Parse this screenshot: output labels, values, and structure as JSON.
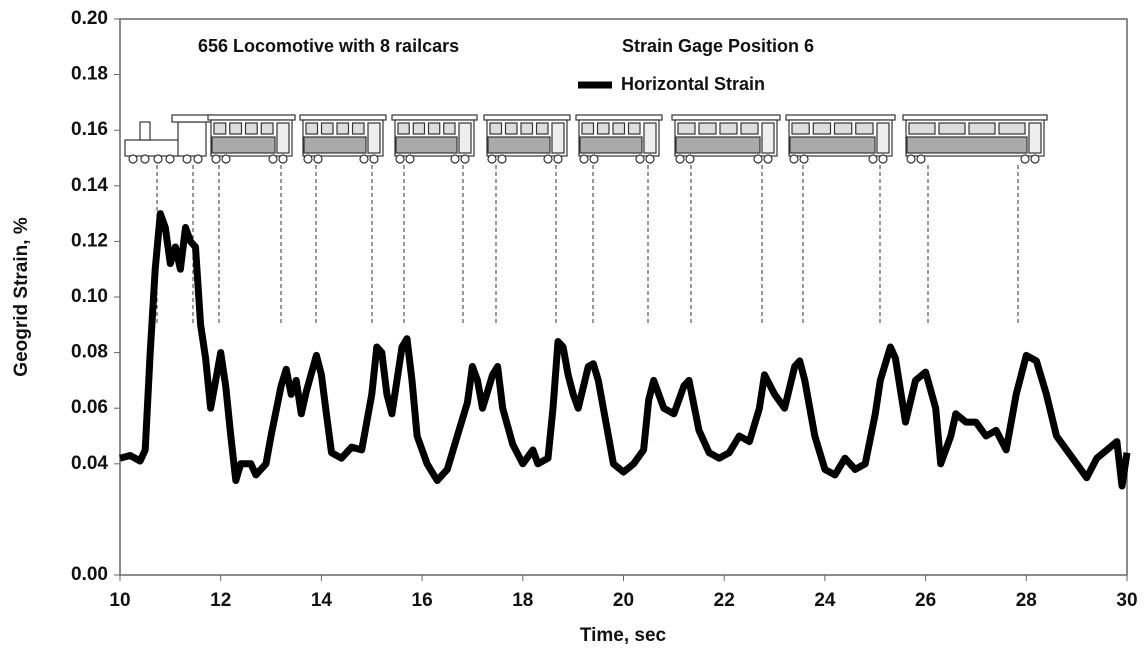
{
  "chart_data": {
    "type": "line",
    "annotations": [
      "656 Locomotive with 8 railcars",
      "Strain Gage Position 6"
    ],
    "x_label": "Time, sec",
    "y_label": "Geogrid Strain, %",
    "xlim": [
      10,
      30
    ],
    "xticks": [
      10,
      12,
      14,
      16,
      18,
      20,
      22,
      24,
      26,
      28,
      30
    ],
    "ylim": [
      0,
      0.2
    ],
    "yticks": [
      {
        "value": 0,
        "label": "0.00"
      },
      {
        "value": 0.04,
        "label": "0.04"
      },
      {
        "value": 0.06,
        "label": "0.06"
      },
      {
        "value": 0.08,
        "label": "0.08"
      },
      {
        "value": 0.1,
        "label": "0.10"
      },
      {
        "value": 0.12,
        "label": "0.12"
      },
      {
        "value": 0.14,
        "label": "0.14"
      },
      {
        "value": 0.16,
        "label": "0.16"
      },
      {
        "value": 0.18,
        "label": "0.18"
      },
      {
        "value": 0.2,
        "label": "0.20"
      }
    ],
    "legend": "top",
    "x": [
      10.0,
      10.2,
      10.4,
      10.5,
      10.6,
      10.7,
      10.8,
      10.9,
      11.0,
      11.1,
      11.2,
      11.3,
      11.4,
      11.5,
      11.6,
      11.7,
      11.8,
      11.9,
      12.0,
      12.1,
      12.2,
      12.3,
      12.4,
      12.6,
      12.7,
      12.9,
      13.0,
      13.2,
      13.3,
      13.4,
      13.5,
      13.6,
      13.7,
      13.9,
      14.0,
      14.1,
      14.2,
      14.4,
      14.6,
      14.8,
      15.0,
      15.1,
      15.2,
      15.3,
      15.4,
      15.6,
      15.7,
      15.8,
      15.9,
      16.1,
      16.3,
      16.5,
      16.7,
      16.9,
      17.0,
      17.1,
      17.2,
      17.4,
      17.5,
      17.6,
      17.8,
      18.0,
      18.2,
      18.3,
      18.5,
      18.6,
      18.7,
      18.8,
      18.9,
      19.0,
      19.1,
      19.3,
      19.4,
      19.5,
      19.7,
      19.8,
      20.0,
      20.2,
      20.4,
      20.5,
      20.6,
      20.8,
      21.0,
      21.2,
      21.3,
      21.5,
      21.7,
      21.9,
      22.1,
      22.3,
      22.5,
      22.7,
      22.8,
      23.0,
      23.2,
      23.4,
      23.5,
      23.6,
      23.8,
      24.0,
      24.2,
      24.4,
      24.6,
      24.8,
      25.0,
      25.1,
      25.3,
      25.4,
      25.6,
      25.8,
      26.0,
      26.2,
      26.3,
      26.5,
      26.6,
      26.8,
      27.0,
      27.2,
      27.4,
      27.6,
      27.8,
      28.0,
      28.2,
      28.4,
      28.6,
      28.8,
      29.0,
      29.2,
      29.4,
      29.6,
      29.8,
      29.9,
      30.0
    ],
    "series": [
      {
        "name": "Horizontal Strain",
        "color": "#000000",
        "values": [
          0.042,
          0.043,
          0.041,
          0.045,
          0.08,
          0.11,
          0.13,
          0.125,
          0.112,
          0.118,
          0.11,
          0.125,
          0.12,
          0.118,
          0.09,
          0.078,
          0.06,
          0.07,
          0.08,
          0.068,
          0.05,
          0.034,
          0.04,
          0.04,
          0.036,
          0.04,
          0.05,
          0.068,
          0.074,
          0.065,
          0.07,
          0.058,
          0.066,
          0.079,
          0.072,
          0.058,
          0.044,
          0.042,
          0.046,
          0.045,
          0.065,
          0.082,
          0.08,
          0.065,
          0.058,
          0.082,
          0.085,
          0.07,
          0.05,
          0.04,
          0.034,
          0.038,
          0.05,
          0.062,
          0.075,
          0.07,
          0.06,
          0.072,
          0.075,
          0.06,
          0.047,
          0.04,
          0.045,
          0.04,
          0.042,
          0.06,
          0.084,
          0.082,
          0.072,
          0.065,
          0.06,
          0.075,
          0.076,
          0.07,
          0.05,
          0.04,
          0.037,
          0.04,
          0.045,
          0.063,
          0.07,
          0.06,
          0.058,
          0.068,
          0.07,
          0.052,
          0.044,
          0.042,
          0.044,
          0.05,
          0.048,
          0.06,
          0.072,
          0.065,
          0.06,
          0.075,
          0.077,
          0.07,
          0.05,
          0.038,
          0.036,
          0.042,
          0.038,
          0.04,
          0.058,
          0.07,
          0.082,
          0.078,
          0.055,
          0.07,
          0.073,
          0.06,
          0.04,
          0.05,
          0.058,
          0.055,
          0.055,
          0.05,
          0.052,
          0.045,
          0.065,
          0.079,
          0.077,
          0.065,
          0.05,
          0.045,
          0.04,
          0.035,
          0.042,
          0.045,
          0.048,
          0.032,
          0.044
        ]
      }
    ]
  }
}
